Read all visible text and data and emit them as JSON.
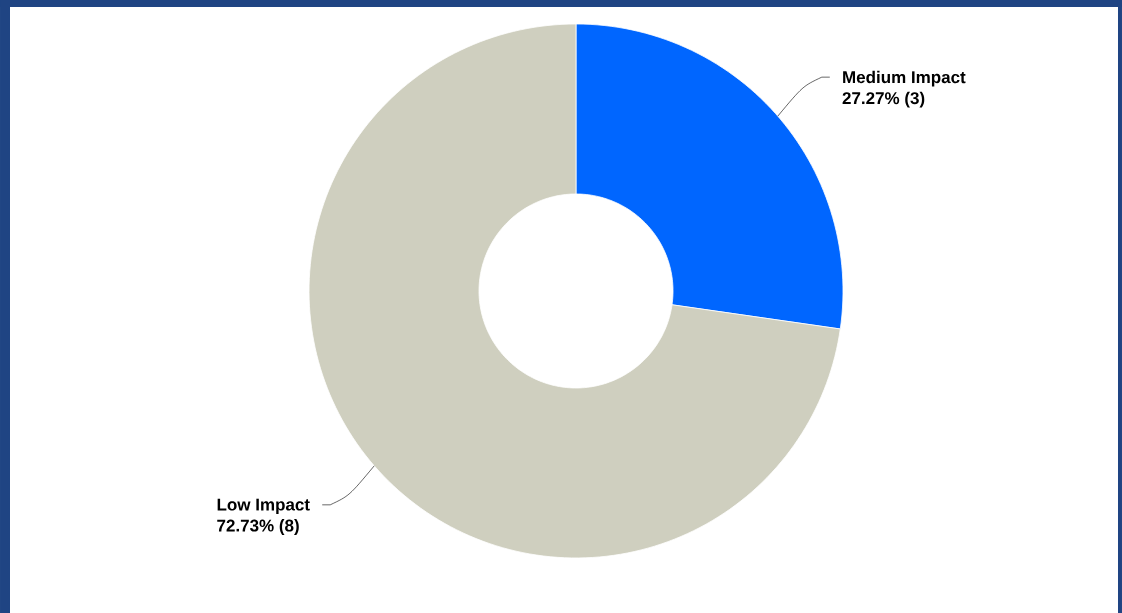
{
  "chart_data": {
    "type": "donut",
    "categories": [
      "Medium Impact",
      "Low Impact"
    ],
    "values": [
      3,
      8
    ],
    "value_labels": [
      "27.27% (3)",
      "72.73% (8)"
    ],
    "colors": [
      "#0066ff",
      "#cfcfbf"
    ]
  }
}
